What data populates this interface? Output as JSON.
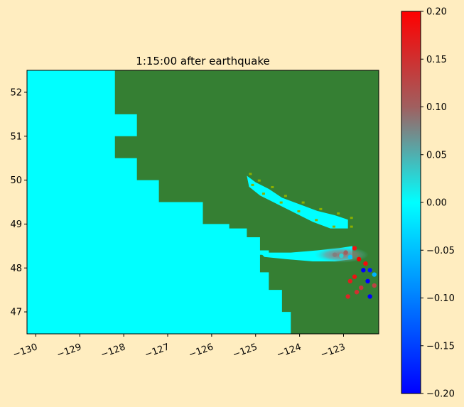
{
  "chart_data": {
    "type": "heatmap",
    "title": "1:15:00 after earthquake",
    "xlabel": "",
    "ylabel": "",
    "xlim": [
      -130.2,
      -122.2
    ],
    "ylim": [
      46.5,
      52.5
    ],
    "x_ticks": [
      {
        "value": -130,
        "label": "−130"
      },
      {
        "value": -129,
        "label": "−129"
      },
      {
        "value": -128,
        "label": "−128"
      },
      {
        "value": -127,
        "label": "−127"
      },
      {
        "value": -126,
        "label": "−126"
      },
      {
        "value": -125,
        "label": "−125"
      },
      {
        "value": -124,
        "label": "−124"
      },
      {
        "value": -123,
        "label": "−123"
      }
    ],
    "y_ticks": [
      {
        "value": 47,
        "label": "47"
      },
      {
        "value": 48,
        "label": "48"
      },
      {
        "value": 49,
        "label": "49"
      },
      {
        "value": 50,
        "label": "50"
      },
      {
        "value": 51,
        "label": "51"
      },
      {
        "value": 52,
        "label": "52"
      }
    ],
    "land_color": "#357f33",
    "ocean_color": "#00ffff",
    "shallow_color": "#8cb000",
    "coastline_lonlat": [
      [
        -128.2,
        52.5
      ],
      [
        -128.2,
        51.5
      ],
      [
        -127.7,
        51.5
      ],
      [
        -127.7,
        51.0
      ],
      [
        -128.2,
        51.0
      ],
      [
        -128.2,
        50.5
      ],
      [
        -127.7,
        50.5
      ],
      [
        -127.7,
        50.0
      ],
      [
        -127.2,
        50.0
      ],
      [
        -127.2,
        49.5
      ],
      [
        -126.2,
        49.5
      ],
      [
        -126.2,
        49.0
      ],
      [
        -125.6,
        49.0
      ],
      [
        -125.6,
        48.9
      ],
      [
        -125.2,
        48.9
      ],
      [
        -125.2,
        48.7
      ],
      [
        -124.9,
        48.7
      ],
      [
        -124.9,
        48.4
      ],
      [
        -124.7,
        48.4
      ],
      [
        -124.7,
        48.3
      ],
      [
        -124.9,
        48.3
      ],
      [
        -124.9,
        47.9
      ],
      [
        -124.7,
        47.9
      ],
      [
        -124.7,
        47.5
      ],
      [
        -124.4,
        47.5
      ],
      [
        -124.4,
        47.0
      ],
      [
        -124.2,
        47.0
      ],
      [
        -124.2,
        46.5
      ]
    ],
    "strait_lonlat": [
      [
        -125.2,
        50.1
      ],
      [
        -125.0,
        49.95
      ],
      [
        -124.7,
        49.8
      ],
      [
        -124.4,
        49.6
      ],
      [
        -124.0,
        49.45
      ],
      [
        -123.6,
        49.3
      ],
      [
        -123.2,
        49.2
      ],
      [
        -122.9,
        49.1
      ],
      [
        -122.9,
        48.9
      ],
      [
        -123.3,
        48.9
      ],
      [
        -123.7,
        49.05
      ],
      [
        -124.1,
        49.25
      ],
      [
        -124.5,
        49.45
      ],
      [
        -124.9,
        49.65
      ],
      [
        -125.15,
        49.85
      ]
    ],
    "juan_de_fuca_lonlat": [
      [
        -124.9,
        48.35
      ],
      [
        -124.2,
        48.35
      ],
      [
        -123.6,
        48.4
      ],
      [
        -123.1,
        48.45
      ],
      [
        -122.8,
        48.5
      ],
      [
        -122.8,
        48.2
      ],
      [
        -123.2,
        48.15
      ],
      [
        -123.7,
        48.15
      ],
      [
        -124.3,
        48.2
      ],
      [
        -124.8,
        48.25
      ]
    ],
    "anomalies": [
      {
        "lon": -123.2,
        "lat": 48.3,
        "value": 0.08
      },
      {
        "lon": -122.95,
        "lat": 48.35,
        "value": 0.1
      },
      {
        "lon": -122.75,
        "lat": 48.45,
        "value": 0.18
      },
      {
        "lon": -122.65,
        "lat": 48.2,
        "value": 0.2
      },
      {
        "lon": -122.5,
        "lat": 48.1,
        "value": 0.19
      },
      {
        "lon": -122.55,
        "lat": 47.95,
        "value": -0.2
      },
      {
        "lon": -122.4,
        "lat": 47.95,
        "value": -0.18
      },
      {
        "lon": -122.45,
        "lat": 47.7,
        "value": -0.2
      },
      {
        "lon": -122.4,
        "lat": 47.35,
        "value": -0.2
      },
      {
        "lon": -122.75,
        "lat": 47.8,
        "value": 0.18
      },
      {
        "lon": -122.85,
        "lat": 47.7,
        "value": 0.17
      },
      {
        "lon": -122.9,
        "lat": 47.35,
        "value": 0.16
      },
      {
        "lon": -122.7,
        "lat": 47.45,
        "value": 0.15
      },
      {
        "lon": -122.6,
        "lat": 47.55,
        "value": 0.14
      },
      {
        "lon": -122.3,
        "lat": 47.6,
        "value": 0.13
      },
      {
        "lon": -122.3,
        "lat": 47.85,
        "value": -0.06
      },
      {
        "lon": -123.05,
        "lat": 48.28,
        "value": 0.03
      },
      {
        "lon": -122.85,
        "lat": 48.25,
        "value": -0.04
      }
    ],
    "colorbar": {
      "vmin": -0.2,
      "vmax": 0.2,
      "colors": [
        "#0000ff",
        "#00ffff",
        "#a05f5f",
        "#ff0000"
      ],
      "ticks": [
        {
          "value": 0.2,
          "label": "0.20"
        },
        {
          "value": 0.15,
          "label": "0.15"
        },
        {
          "value": 0.1,
          "label": "0.10"
        },
        {
          "value": 0.05,
          "label": "0.05"
        },
        {
          "value": 0.0,
          "label": "0.00"
        },
        {
          "value": -0.05,
          "label": "−0.05"
        },
        {
          "value": -0.1,
          "label": "−0.10"
        },
        {
          "value": -0.15,
          "label": "−0.15"
        },
        {
          "value": -0.2,
          "label": "−0.20"
        }
      ]
    }
  }
}
